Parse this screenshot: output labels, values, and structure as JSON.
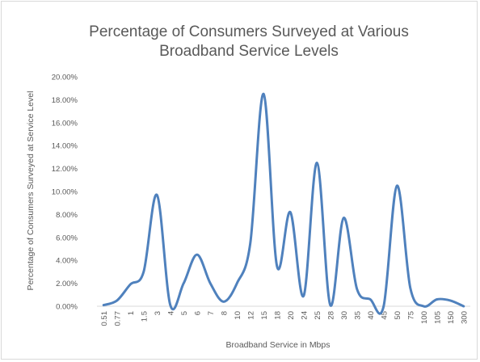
{
  "chart_data": {
    "type": "line",
    "smooth": true,
    "title_lines": [
      "Percentage of Consumers Surveyed at Various",
      "Broadband Service Levels"
    ],
    "xlabel": "Broadband Service in Mbps",
    "ylabel": "Percentage of Consumers Surveyed  at Service Level",
    "ylim": [
      0,
      0.2
    ],
    "y_ticks": [
      "0.00%",
      "2.00%",
      "4.00%",
      "6.00%",
      "8.00%",
      "10.00%",
      "12.00%",
      "14.00%",
      "16.00%",
      "18.00%",
      "20.00%"
    ],
    "grid": false,
    "legend": "none",
    "line_color": "#4f81bd",
    "categories": [
      "0.51",
      "0.77",
      "1",
      "1.5",
      "3",
      "4",
      "5",
      "6",
      "7",
      "8",
      "10",
      "12",
      "15",
      "18",
      "20",
      "24",
      "25",
      "28",
      "30",
      "35",
      "40",
      "45",
      "50",
      "75",
      "100",
      "105",
      "150",
      "300"
    ],
    "values": [
      0.001,
      0.005,
      0.019,
      0.03,
      0.097,
      0.001,
      0.02,
      0.045,
      0.02,
      0.004,
      0.02,
      0.055,
      0.185,
      0.035,
      0.082,
      0.009,
      0.125,
      0.001,
      0.077,
      0.015,
      0.006,
      0.0,
      0.105,
      0.016,
      0.0,
      0.006,
      0.005,
      0.0
    ]
  }
}
